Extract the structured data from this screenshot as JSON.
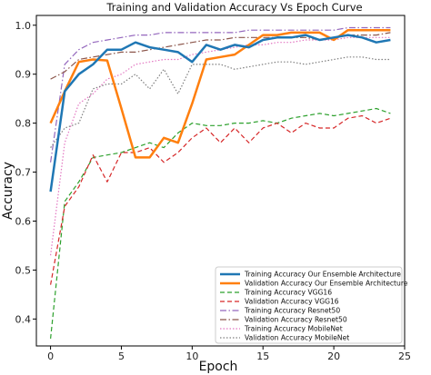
{
  "chart_data": {
    "type": "line",
    "title": "Training and Validation Accuracy Vs Epoch Curve",
    "xlabel": "Epoch",
    "ylabel": "Accuracy",
    "xlim": [
      -1,
      25
    ],
    "ylim": [
      0.345,
      1.02
    ],
    "xticks": [
      0,
      5,
      10,
      15,
      20,
      25
    ],
    "yticks": [
      0.4,
      0.5,
      0.6,
      0.7,
      0.8,
      0.9,
      1.0
    ],
    "grid": false,
    "legend_position": "lower-right",
    "x": [
      0,
      1,
      2,
      3,
      4,
      5,
      6,
      7,
      8,
      9,
      10,
      11,
      12,
      13,
      14,
      15,
      16,
      17,
      18,
      19,
      20,
      21,
      22,
      23,
      24
    ],
    "series": [
      {
        "name": "Training Accuracy Our Ensemble Architecture",
        "color": "#1f77b4",
        "dash": "solid",
        "width": 2.5,
        "values": [
          0.66,
          0.865,
          0.9,
          0.92,
          0.95,
          0.95,
          0.965,
          0.955,
          0.95,
          0.945,
          0.925,
          0.96,
          0.95,
          0.96,
          0.955,
          0.97,
          0.975,
          0.975,
          0.98,
          0.97,
          0.975,
          0.98,
          0.975,
          0.965,
          0.97
        ]
      },
      {
        "name": "Validation Accuracy Our Ensemble Architecture",
        "color": "#ff7f0e",
        "dash": "solid",
        "width": 2.5,
        "values": [
          0.8,
          0.865,
          0.925,
          0.93,
          0.928,
          0.83,
          0.73,
          0.73,
          0.77,
          0.76,
          0.84,
          0.93,
          0.935,
          0.94,
          0.96,
          0.98,
          0.98,
          0.985,
          0.985,
          0.985,
          0.97,
          0.99,
          0.99,
          0.99,
          0.99
        ]
      },
      {
        "name": "Training Accuracy VGG16",
        "color": "#2ca02c",
        "dash": "dashed",
        "width": 1.2,
        "values": [
          0.36,
          0.64,
          0.68,
          0.73,
          0.735,
          0.74,
          0.75,
          0.76,
          0.75,
          0.78,
          0.8,
          0.795,
          0.795,
          0.8,
          0.8,
          0.805,
          0.8,
          0.81,
          0.815,
          0.82,
          0.815,
          0.82,
          0.825,
          0.83,
          0.82
        ]
      },
      {
        "name": "Validation Accuracy VGG16",
        "color": "#d62728",
        "dash": "dashed",
        "width": 1.2,
        "values": [
          0.47,
          0.63,
          0.67,
          0.735,
          0.68,
          0.74,
          0.74,
          0.75,
          0.72,
          0.74,
          0.77,
          0.79,
          0.76,
          0.79,
          0.76,
          0.79,
          0.8,
          0.78,
          0.8,
          0.79,
          0.79,
          0.81,
          0.815,
          0.8,
          0.81
        ]
      },
      {
        "name": "Training Accuracy Resnet50",
        "color": "#9467bd",
        "dash": "dashdot",
        "width": 1.2,
        "values": [
          0.72,
          0.92,
          0.95,
          0.965,
          0.97,
          0.975,
          0.98,
          0.98,
          0.985,
          0.985,
          0.985,
          0.985,
          0.985,
          0.985,
          0.99,
          0.99,
          0.99,
          0.99,
          0.99,
          0.99,
          0.99,
          0.995,
          0.995,
          0.995,
          0.995
        ]
      },
      {
        "name": "Validation Accuracy Resnet50",
        "color": "#8c564b",
        "dash": "dashdot",
        "width": 1.2,
        "values": [
          0.89,
          0.905,
          0.93,
          0.935,
          0.94,
          0.945,
          0.945,
          0.95,
          0.955,
          0.96,
          0.965,
          0.97,
          0.97,
          0.975,
          0.975,
          0.975,
          0.975,
          0.975,
          0.975,
          0.97,
          0.975,
          0.98,
          0.98,
          0.98,
          0.985
        ]
      },
      {
        "name": "Training Accuracy MobileNet",
        "color": "#e377c2",
        "dash": "dotted",
        "width": 1.2,
        "values": [
          0.53,
          0.76,
          0.84,
          0.86,
          0.89,
          0.9,
          0.92,
          0.925,
          0.93,
          0.93,
          0.94,
          0.945,
          0.95,
          0.955,
          0.96,
          0.96,
          0.965,
          0.965,
          0.97,
          0.97,
          0.97,
          0.975,
          0.975,
          0.975,
          0.975
        ]
      },
      {
        "name": "Validation Accuracy MobileNet",
        "color": "#7f7f7f",
        "dash": "dotted",
        "width": 1.2,
        "values": [
          0.75,
          0.79,
          0.8,
          0.87,
          0.88,
          0.88,
          0.9,
          0.87,
          0.91,
          0.86,
          0.92,
          0.92,
          0.92,
          0.91,
          0.915,
          0.92,
          0.925,
          0.925,
          0.92,
          0.925,
          0.93,
          0.935,
          0.935,
          0.93,
          0.93
        ]
      }
    ]
  }
}
